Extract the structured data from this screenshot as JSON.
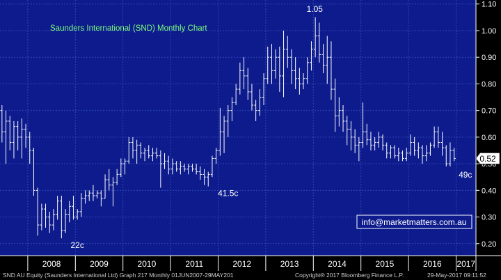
{
  "chart_data": {
    "type": "ohlc",
    "title": "Saunders International (SND) Monthly Chart",
    "x_labels": [
      "2008",
      "2009",
      "2010",
      "2011",
      "2012",
      "2013",
      "2014",
      "2015",
      "2016",
      "2017"
    ],
    "y_ticks": [
      "1.10",
      "1.00",
      "0.90",
      "0.80",
      "0.70",
      "0.60",
      "0.50",
      "0.40",
      "0.30",
      "0.20"
    ],
    "ylim": [
      0.155,
      1.115
    ],
    "last_price": "0.52",
    "annotations": [
      {
        "text": "1.05",
        "x": "2014-04",
        "y": 1.05
      },
      {
        "text": "22c",
        "x": "2009-01",
        "y": 0.22
      },
      {
        "text": "41.5c",
        "x": "2012-03",
        "y": 0.415
      },
      {
        "text": "49c",
        "x": "2017-03",
        "y": 0.49
      }
    ],
    "watermark": "info@marketmatters.com.au",
    "series": [
      {
        "values": [
          [
            0.7,
            0.72,
            0.58,
            0.62
          ],
          [
            0.62,
            0.7,
            0.5,
            0.66
          ],
          [
            0.66,
            0.68,
            0.55,
            0.58
          ],
          [
            0.58,
            0.66,
            0.52,
            0.64
          ],
          [
            0.64,
            0.66,
            0.55,
            0.6
          ],
          [
            0.6,
            0.67,
            0.52,
            0.63
          ],
          [
            0.63,
            0.65,
            0.56,
            0.6
          ],
          [
            0.6,
            0.62,
            0.5,
            0.55
          ],
          [
            0.55,
            0.56,
            0.38,
            0.4
          ],
          [
            0.4,
            0.41,
            0.23,
            0.27
          ],
          [
            0.27,
            0.35,
            0.25,
            0.33
          ],
          [
            0.33,
            0.35,
            0.26,
            0.3
          ],
          [
            0.3,
            0.32,
            0.24,
            0.27
          ],
          [
            0.27,
            0.33,
            0.25,
            0.31
          ],
          [
            0.31,
            0.38,
            0.29,
            0.36
          ],
          [
            0.36,
            0.38,
            0.22,
            0.25
          ],
          [
            0.25,
            0.33,
            0.24,
            0.31
          ],
          [
            0.31,
            0.36,
            0.28,
            0.34
          ],
          [
            0.34,
            0.38,
            0.29,
            0.3
          ],
          [
            0.3,
            0.33,
            0.29,
            0.32
          ],
          [
            0.32,
            0.39,
            0.3,
            0.37
          ],
          [
            0.37,
            0.4,
            0.35,
            0.38
          ],
          [
            0.38,
            0.4,
            0.36,
            0.39
          ],
          [
            0.39,
            0.42,
            0.36,
            0.38
          ],
          [
            0.38,
            0.4,
            0.37,
            0.39
          ],
          [
            0.39,
            0.4,
            0.34,
            0.37
          ],
          [
            0.37,
            0.46,
            0.37,
            0.44
          ],
          [
            0.44,
            0.48,
            0.4,
            0.42
          ],
          [
            0.42,
            0.45,
            0.34,
            0.43
          ],
          [
            0.43,
            0.48,
            0.42,
            0.46
          ],
          [
            0.46,
            0.52,
            0.45,
            0.5
          ],
          [
            0.5,
            0.52,
            0.46,
            0.51
          ],
          [
            0.51,
            0.6,
            0.5,
            0.58
          ],
          [
            0.58,
            0.6,
            0.52,
            0.55
          ],
          [
            0.55,
            0.59,
            0.5,
            0.57
          ],
          [
            0.57,
            0.58,
            0.52,
            0.54
          ],
          [
            0.54,
            0.56,
            0.51,
            0.55
          ],
          [
            0.55,
            0.57,
            0.52,
            0.53
          ],
          [
            0.53,
            0.56,
            0.51,
            0.54
          ],
          [
            0.54,
            0.56,
            0.52,
            0.53
          ],
          [
            0.53,
            0.55,
            0.41,
            0.5
          ],
          [
            0.5,
            0.54,
            0.48,
            0.51
          ],
          [
            0.51,
            0.53,
            0.46,
            0.48
          ],
          [
            0.48,
            0.52,
            0.46,
            0.5
          ],
          [
            0.5,
            0.51,
            0.47,
            0.48
          ],
          [
            0.48,
            0.51,
            0.46,
            0.49
          ],
          [
            0.49,
            0.5,
            0.47,
            0.48
          ],
          [
            0.48,
            0.5,
            0.46,
            0.49
          ],
          [
            0.49,
            0.5,
            0.47,
            0.48
          ],
          [
            0.48,
            0.5,
            0.46,
            0.47
          ],
          [
            0.47,
            0.49,
            0.44,
            0.46
          ],
          [
            0.46,
            0.48,
            0.42,
            0.45
          ],
          [
            0.45,
            0.47,
            0.415,
            0.46
          ],
          [
            0.46,
            0.53,
            0.45,
            0.52
          ],
          [
            0.52,
            0.56,
            0.5,
            0.55
          ],
          [
            0.55,
            0.71,
            0.53,
            0.62
          ],
          [
            0.62,
            0.68,
            0.54,
            0.66
          ],
          [
            0.66,
            0.72,
            0.6,
            0.7
          ],
          [
            0.7,
            0.75,
            0.66,
            0.73
          ],
          [
            0.73,
            0.8,
            0.72,
            0.78
          ],
          [
            0.78,
            0.88,
            0.76,
            0.85
          ],
          [
            0.85,
            0.9,
            0.78,
            0.83
          ],
          [
            0.83,
            0.86,
            0.74,
            0.77
          ],
          [
            0.77,
            0.8,
            0.7,
            0.72
          ],
          [
            0.72,
            0.74,
            0.66,
            0.7
          ],
          [
            0.7,
            0.78,
            0.68,
            0.75
          ],
          [
            0.75,
            0.84,
            0.72,
            0.82
          ],
          [
            0.82,
            0.94,
            0.8,
            0.9
          ],
          [
            0.9,
            0.95,
            0.8,
            0.85
          ],
          [
            0.85,
            0.93,
            0.82,
            0.9
          ],
          [
            0.9,
            0.94,
            0.77,
            0.83
          ],
          [
            0.83,
            1.0,
            0.75,
            0.93
          ],
          [
            0.93,
            0.98,
            0.86,
            0.9
          ],
          [
            0.9,
            0.93,
            0.8,
            0.85
          ],
          [
            0.85,
            0.9,
            0.78,
            0.82
          ],
          [
            0.82,
            0.86,
            0.76,
            0.8
          ],
          [
            0.8,
            0.84,
            0.78,
            0.82
          ],
          [
            0.82,
            0.9,
            0.8,
            0.88
          ],
          [
            0.88,
            0.96,
            0.85,
            0.93
          ],
          [
            0.93,
            1.05,
            0.9,
            0.98
          ],
          [
            0.98,
            1.03,
            0.88,
            0.91
          ],
          [
            0.91,
            0.95,
            0.84,
            0.87
          ],
          [
            0.87,
            0.98,
            0.8,
            0.9
          ],
          [
            0.9,
            0.96,
            0.74,
            0.78
          ],
          [
            0.78,
            0.82,
            0.62,
            0.68
          ],
          [
            0.68,
            0.75,
            0.64,
            0.7
          ],
          [
            0.7,
            0.72,
            0.62,
            0.66
          ],
          [
            0.66,
            0.68,
            0.57,
            0.63
          ],
          [
            0.63,
            0.66,
            0.55,
            0.6
          ],
          [
            0.6,
            0.63,
            0.54,
            0.57
          ],
          [
            0.57,
            0.6,
            0.51,
            0.58
          ],
          [
            0.58,
            0.73,
            0.56,
            0.62
          ],
          [
            0.62,
            0.65,
            0.57,
            0.59
          ],
          [
            0.59,
            0.62,
            0.55,
            0.57
          ],
          [
            0.57,
            0.6,
            0.55,
            0.58
          ],
          [
            0.58,
            0.62,
            0.56,
            0.6
          ],
          [
            0.6,
            0.61,
            0.55,
            0.57
          ],
          [
            0.57,
            0.58,
            0.52,
            0.54
          ],
          [
            0.54,
            0.57,
            0.52,
            0.56
          ],
          [
            0.56,
            0.57,
            0.52,
            0.53
          ],
          [
            0.53,
            0.56,
            0.51,
            0.54
          ],
          [
            0.54,
            0.55,
            0.51,
            0.52
          ],
          [
            0.52,
            0.56,
            0.51,
            0.54
          ],
          [
            0.54,
            0.61,
            0.53,
            0.58
          ],
          [
            0.58,
            0.6,
            0.53,
            0.55
          ],
          [
            0.55,
            0.58,
            0.52,
            0.56
          ],
          [
            0.56,
            0.57,
            0.5,
            0.53
          ],
          [
            0.53,
            0.57,
            0.51,
            0.54
          ],
          [
            0.54,
            0.58,
            0.53,
            0.57
          ],
          [
            0.57,
            0.64,
            0.56,
            0.62
          ],
          [
            0.62,
            0.64,
            0.56,
            0.58
          ],
          [
            0.58,
            0.62,
            0.53,
            0.56
          ],
          [
            0.56,
            0.57,
            0.49,
            0.5
          ],
          [
            0.5,
            0.58,
            0.49,
            0.55
          ],
          [
            0.55,
            0.56,
            0.51,
            0.52
          ]
        ]
      }
    ]
  },
  "footer": {
    "left": "SND AU Equity (Saunders International Ltd) Graph 217  Monthly 01JUN2007-29MAY201",
    "center": "Copyright® 2017 Bloomberg Finance L.P.",
    "right": "29-May-2017 09:11:52"
  },
  "colors": {
    "panel_background": "#0d1b8c",
    "grid": "#2f45b8",
    "bars": "#ffffff",
    "title": "#7cfc7c",
    "text": "#ffffff"
  }
}
